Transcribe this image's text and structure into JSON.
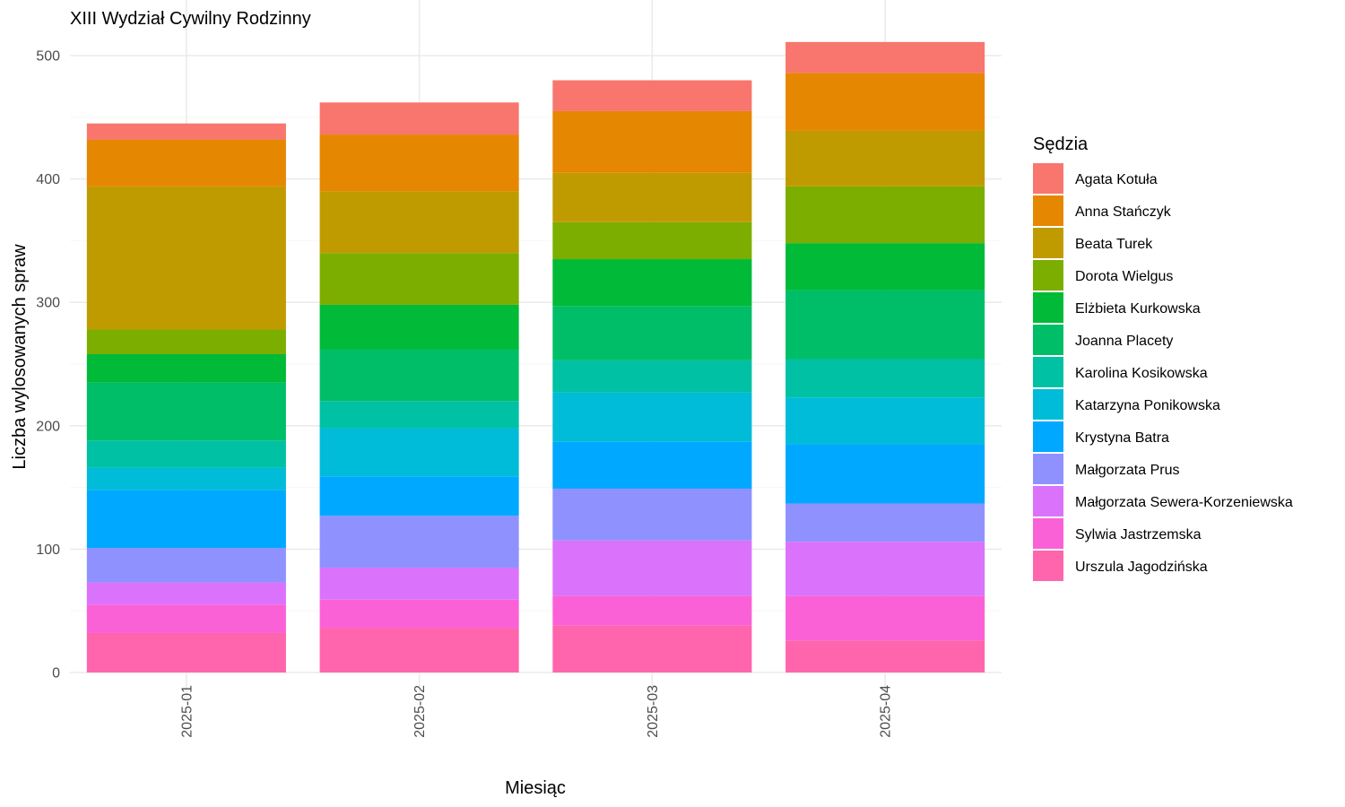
{
  "chart_data": {
    "type": "bar",
    "stacked": true,
    "title": "XIII Wydział Cywilny Rodzinny",
    "xlabel": "Miesiąc",
    "ylabel": "Liczba wylosowanych spraw",
    "ylim": [
      0,
      520
    ],
    "yticks": [
      0,
      100,
      200,
      300,
      400,
      500
    ],
    "grid": true,
    "legend_title": "Sędzia",
    "legend_position": "right",
    "categories": [
      "2025-01",
      "2025-02",
      "2025-03",
      "2025-04"
    ],
    "series": [
      {
        "name": "Urszula Jagodzińska",
        "color": "#FF65AC",
        "values": [
          32,
          36,
          38,
          26
        ]
      },
      {
        "name": "Sylwia Jastrzemska",
        "color": "#FB61D7",
        "values": [
          23,
          23,
          24,
          36
        ]
      },
      {
        "name": "Małgorzata Sewera-Korzeniewska",
        "color": "#DB72FB",
        "values": [
          18,
          26,
          45,
          44
        ]
      },
      {
        "name": "Małgorzata Prus",
        "color": "#8F91FF",
        "values": [
          28,
          42,
          42,
          31
        ]
      },
      {
        "name": "Krystyna Batra",
        "color": "#00A9FF",
        "values": [
          47,
          32,
          38,
          48
        ]
      },
      {
        "name": "Katarzyna Ponikowska",
        "color": "#00BCD8",
        "values": [
          18,
          39,
          40,
          38
        ]
      },
      {
        "name": "Karolina Kosikowska",
        "color": "#00C1A3",
        "values": [
          22,
          22,
          26,
          31
        ]
      },
      {
        "name": "Joanna Placety",
        "color": "#00BE67",
        "values": [
          47,
          42,
          44,
          56
        ]
      },
      {
        "name": "Elżbieta Kurkowska",
        "color": "#00BA38",
        "values": [
          23,
          36,
          38,
          38
        ]
      },
      {
        "name": "Dorota Wielgus",
        "color": "#7CAE00",
        "values": [
          20,
          42,
          30,
          46
        ]
      },
      {
        "name": "Beata Turek",
        "color": "#C09B00",
        "values": [
          116,
          50,
          40,
          45
        ]
      },
      {
        "name": "Anna Stańczyk",
        "color": "#E58700",
        "values": [
          38,
          46,
          50,
          47
        ]
      },
      {
        "name": "Agata Kotuła",
        "color": "#F8766D",
        "values": [
          13,
          26,
          25,
          25
        ]
      }
    ],
    "legend_order": [
      "Agata Kotuła",
      "Anna Stańczyk",
      "Beata Turek",
      "Dorota Wielgus",
      "Elżbieta Kurkowska",
      "Joanna Placety",
      "Karolina Kosikowska",
      "Katarzyna Ponikowska",
      "Krystyna Batra",
      "Małgorzata Prus",
      "Małgorzata Sewera-Korzeniewska",
      "Sylwia Jastrzemska",
      "Urszula Jagodzińska"
    ]
  }
}
